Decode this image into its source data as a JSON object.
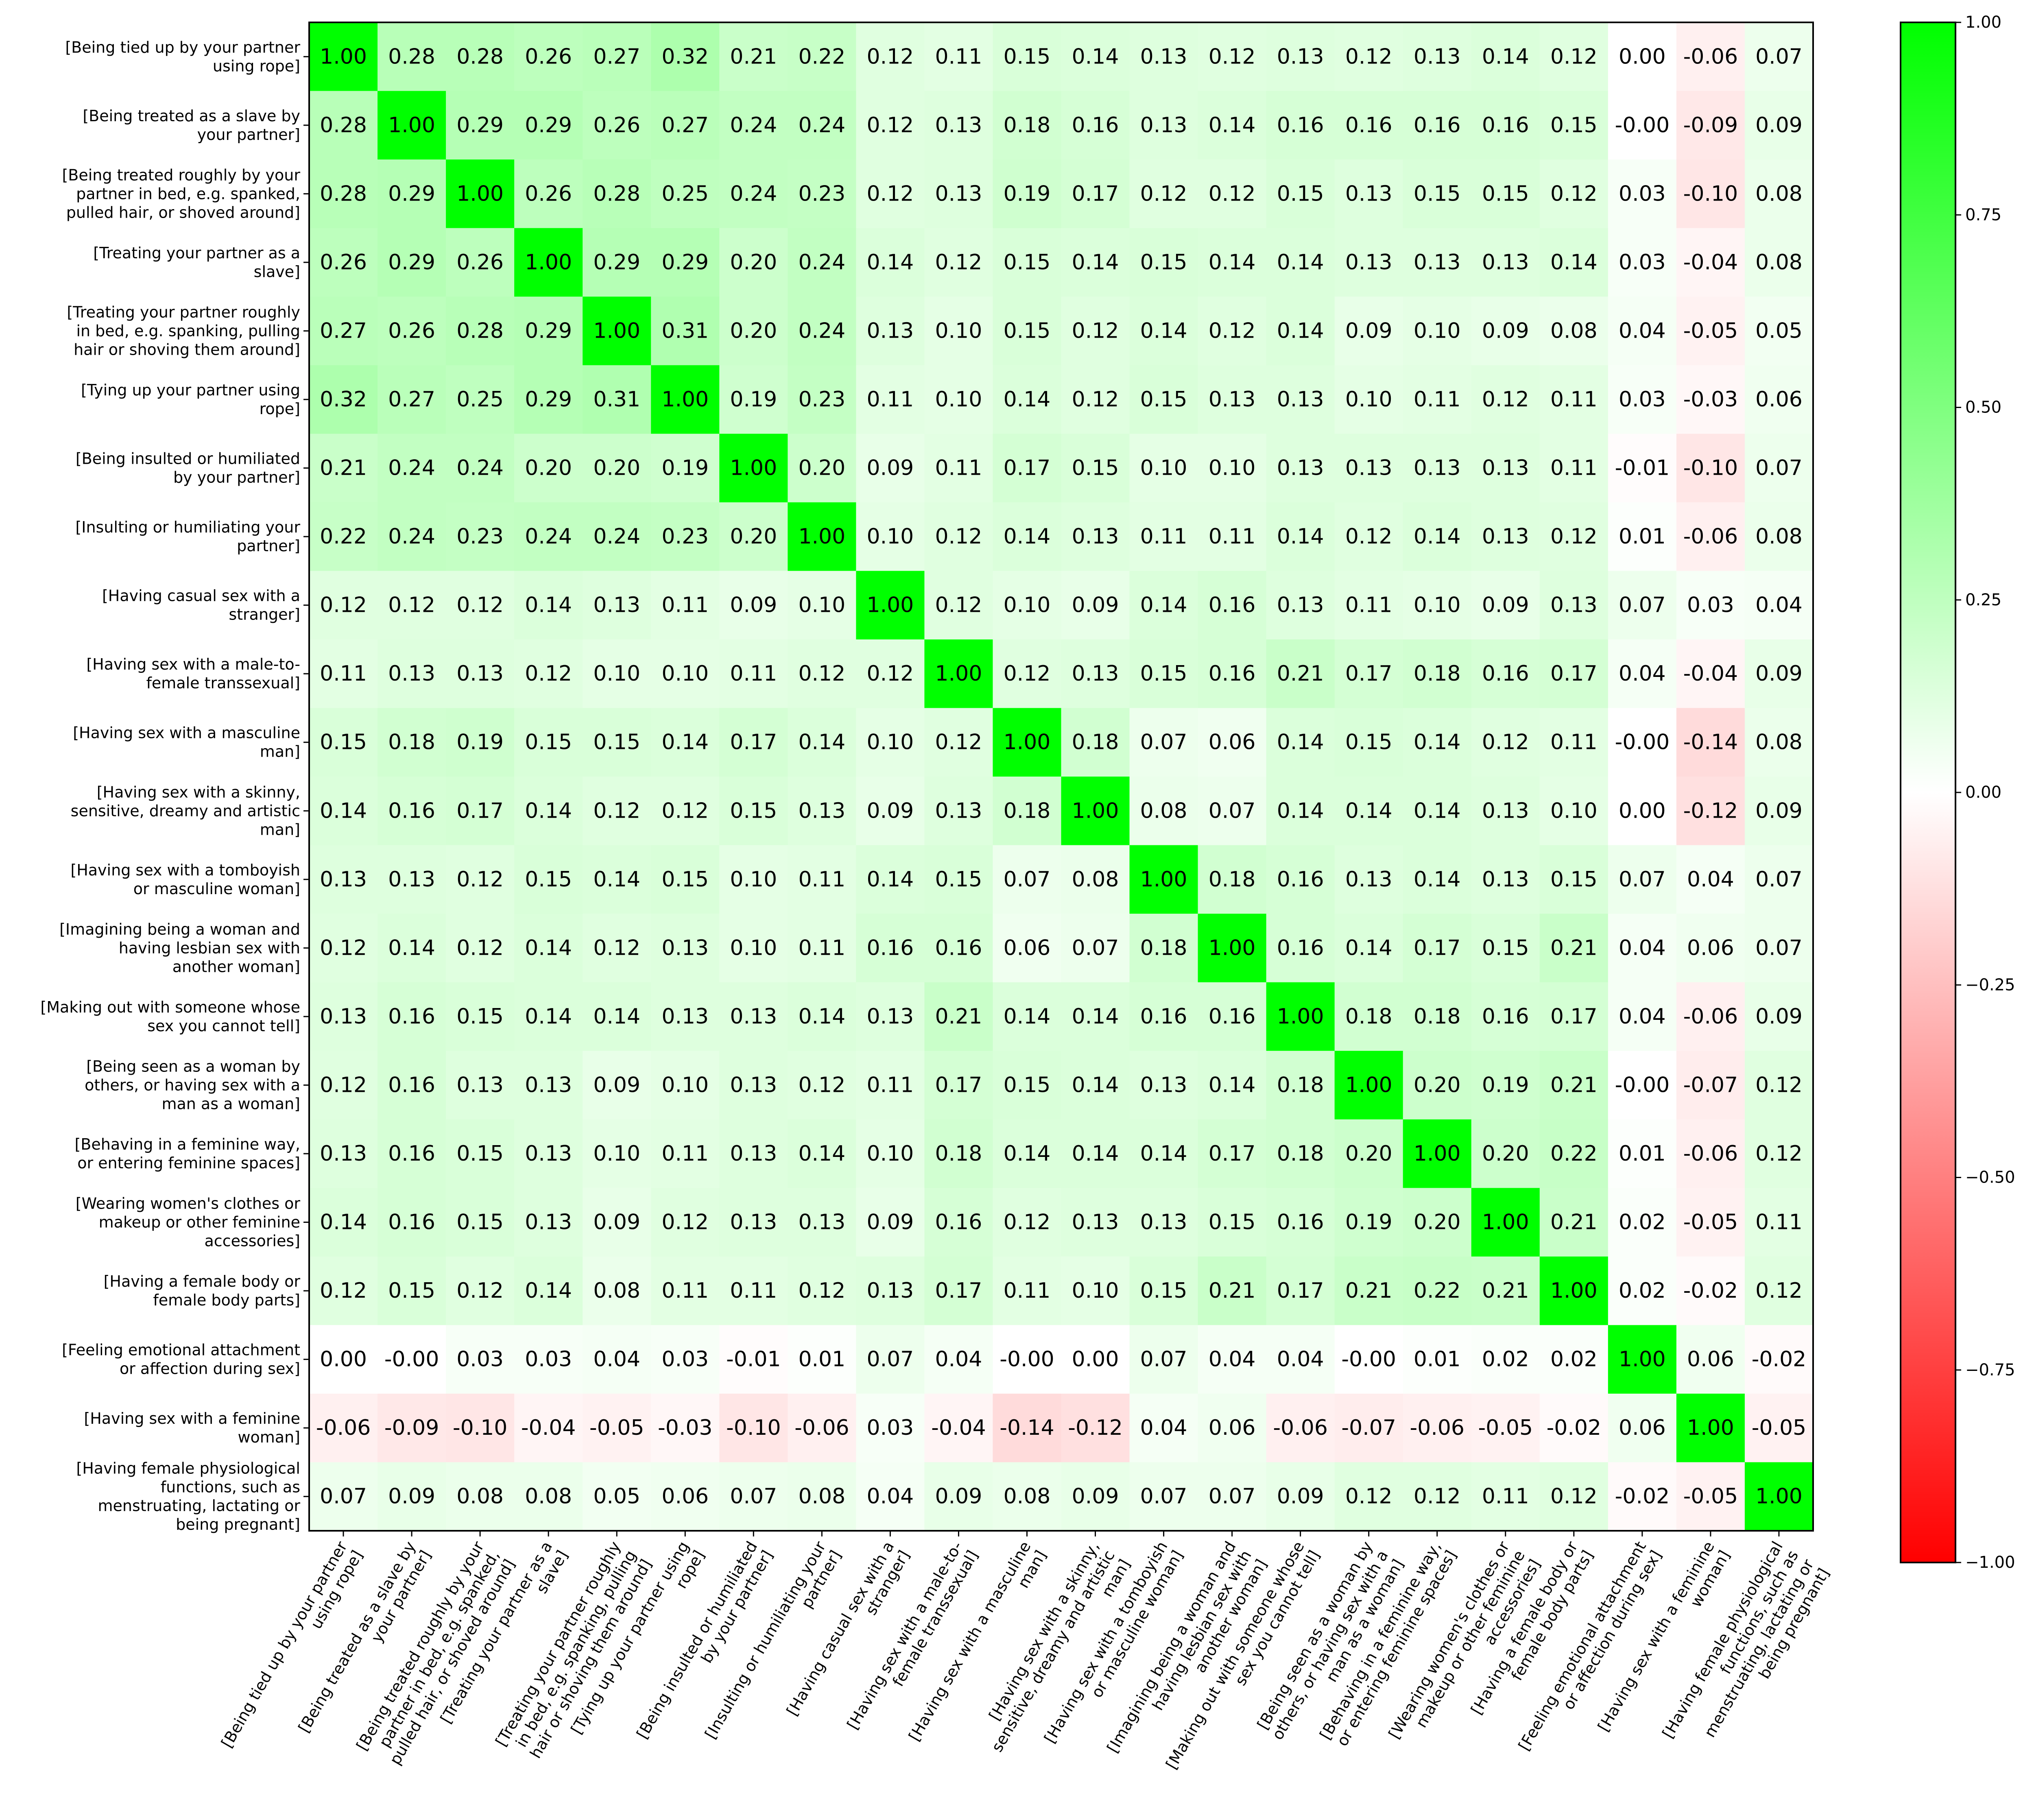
{
  "chart_data": {
    "type": "heatmap",
    "title": "",
    "labels": [
      [
        "[Being tied up by your partner",
        "using rope]"
      ],
      [
        "[Being treated as a slave by",
        "your partner]"
      ],
      [
        "[Being treated roughly by your",
        "partner in bed, e.g. spanked,",
        "pulled hair, or shoved around]"
      ],
      [
        "[Treating your partner as a",
        "slave]"
      ],
      [
        "[Treating your partner roughly",
        "in bed, e.g. spanking, pulling",
        "hair or shoving them around]"
      ],
      [
        "[Tying up your partner using",
        "rope]"
      ],
      [
        "[Being insulted or humiliated",
        "by your partner]"
      ],
      [
        "[Insulting or humiliating your",
        "partner]"
      ],
      [
        "[Having casual sex with a",
        "stranger]"
      ],
      [
        "[Having sex with a male-to-",
        "female transsexual]"
      ],
      [
        "[Having sex with a masculine",
        "man]"
      ],
      [
        "[Having sex with a skinny,",
        "sensitive, dreamy and artistic",
        "man]"
      ],
      [
        "[Having sex with a tomboyish",
        "or masculine woman]"
      ],
      [
        "[Imagining being a woman and",
        "having lesbian sex with",
        "another woman]"
      ],
      [
        "[Making out with someone whose",
        "sex you cannot tell]"
      ],
      [
        "[Being seen as a woman by",
        "others, or having sex with a",
        "man as a woman]"
      ],
      [
        "[Behaving in a feminine way,",
        "or entering feminine spaces]"
      ],
      [
        "[Wearing women's clothes or",
        "makeup or other feminine",
        "accessories]"
      ],
      [
        "[Having a female body or",
        "female body parts]"
      ],
      [
        "[Feeling emotional attachment",
        "or affection during sex]"
      ],
      [
        "[Having sex with a feminine",
        "woman]"
      ],
      [
        "[Having female physiological",
        "functions, such as",
        "menstruating, lactating or",
        "being pregnant]"
      ]
    ],
    "values": [
      [
        "1.00",
        "0.28",
        "0.28",
        "0.26",
        "0.27",
        "0.32",
        "0.21",
        "0.22",
        "0.12",
        "0.11",
        "0.15",
        "0.14",
        "0.13",
        "0.12",
        "0.13",
        "0.12",
        "0.13",
        "0.14",
        "0.12",
        "0.00",
        "-0.06",
        "0.07"
      ],
      [
        "0.28",
        "1.00",
        "0.29",
        "0.29",
        "0.26",
        "0.27",
        "0.24",
        "0.24",
        "0.12",
        "0.13",
        "0.18",
        "0.16",
        "0.13",
        "0.14",
        "0.16",
        "0.16",
        "0.16",
        "0.16",
        "0.15",
        "-0.00",
        "-0.09",
        "0.09"
      ],
      [
        "0.28",
        "0.29",
        "1.00",
        "0.26",
        "0.28",
        "0.25",
        "0.24",
        "0.23",
        "0.12",
        "0.13",
        "0.19",
        "0.17",
        "0.12",
        "0.12",
        "0.15",
        "0.13",
        "0.15",
        "0.15",
        "0.12",
        "0.03",
        "-0.10",
        "0.08"
      ],
      [
        "0.26",
        "0.29",
        "0.26",
        "1.00",
        "0.29",
        "0.29",
        "0.20",
        "0.24",
        "0.14",
        "0.12",
        "0.15",
        "0.14",
        "0.15",
        "0.14",
        "0.14",
        "0.13",
        "0.13",
        "0.13",
        "0.14",
        "0.03",
        "-0.04",
        "0.08"
      ],
      [
        "0.27",
        "0.26",
        "0.28",
        "0.29",
        "1.00",
        "0.31",
        "0.20",
        "0.24",
        "0.13",
        "0.10",
        "0.15",
        "0.12",
        "0.14",
        "0.12",
        "0.14",
        "0.09",
        "0.10",
        "0.09",
        "0.08",
        "0.04",
        "-0.05",
        "0.05"
      ],
      [
        "0.32",
        "0.27",
        "0.25",
        "0.29",
        "0.31",
        "1.00",
        "0.19",
        "0.23",
        "0.11",
        "0.10",
        "0.14",
        "0.12",
        "0.15",
        "0.13",
        "0.13",
        "0.10",
        "0.11",
        "0.12",
        "0.11",
        "0.03",
        "-0.03",
        "0.06"
      ],
      [
        "0.21",
        "0.24",
        "0.24",
        "0.20",
        "0.20",
        "0.19",
        "1.00",
        "0.20",
        "0.09",
        "0.11",
        "0.17",
        "0.15",
        "0.10",
        "0.10",
        "0.13",
        "0.13",
        "0.13",
        "0.13",
        "0.11",
        "-0.01",
        "-0.10",
        "0.07"
      ],
      [
        "0.22",
        "0.24",
        "0.23",
        "0.24",
        "0.24",
        "0.23",
        "0.20",
        "1.00",
        "0.10",
        "0.12",
        "0.14",
        "0.13",
        "0.11",
        "0.11",
        "0.14",
        "0.12",
        "0.14",
        "0.13",
        "0.12",
        "0.01",
        "-0.06",
        "0.08"
      ],
      [
        "0.12",
        "0.12",
        "0.12",
        "0.14",
        "0.13",
        "0.11",
        "0.09",
        "0.10",
        "1.00",
        "0.12",
        "0.10",
        "0.09",
        "0.14",
        "0.16",
        "0.13",
        "0.11",
        "0.10",
        "0.09",
        "0.13",
        "0.07",
        "0.03",
        "0.04"
      ],
      [
        "0.11",
        "0.13",
        "0.13",
        "0.12",
        "0.10",
        "0.10",
        "0.11",
        "0.12",
        "0.12",
        "1.00",
        "0.12",
        "0.13",
        "0.15",
        "0.16",
        "0.21",
        "0.17",
        "0.18",
        "0.16",
        "0.17",
        "0.04",
        "-0.04",
        "0.09"
      ],
      [
        "0.15",
        "0.18",
        "0.19",
        "0.15",
        "0.15",
        "0.14",
        "0.17",
        "0.14",
        "0.10",
        "0.12",
        "1.00",
        "0.18",
        "0.07",
        "0.06",
        "0.14",
        "0.15",
        "0.14",
        "0.12",
        "0.11",
        "-0.00",
        "-0.14",
        "0.08"
      ],
      [
        "0.14",
        "0.16",
        "0.17",
        "0.14",
        "0.12",
        "0.12",
        "0.15",
        "0.13",
        "0.09",
        "0.13",
        "0.18",
        "1.00",
        "0.08",
        "0.07",
        "0.14",
        "0.14",
        "0.14",
        "0.13",
        "0.10",
        "0.00",
        "-0.12",
        "0.09"
      ],
      [
        "0.13",
        "0.13",
        "0.12",
        "0.15",
        "0.14",
        "0.15",
        "0.10",
        "0.11",
        "0.14",
        "0.15",
        "0.07",
        "0.08",
        "1.00",
        "0.18",
        "0.16",
        "0.13",
        "0.14",
        "0.13",
        "0.15",
        "0.07",
        "0.04",
        "0.07"
      ],
      [
        "0.12",
        "0.14",
        "0.12",
        "0.14",
        "0.12",
        "0.13",
        "0.10",
        "0.11",
        "0.16",
        "0.16",
        "0.06",
        "0.07",
        "0.18",
        "1.00",
        "0.16",
        "0.14",
        "0.17",
        "0.15",
        "0.21",
        "0.04",
        "0.06",
        "0.07"
      ],
      [
        "0.13",
        "0.16",
        "0.15",
        "0.14",
        "0.14",
        "0.13",
        "0.13",
        "0.14",
        "0.13",
        "0.21",
        "0.14",
        "0.14",
        "0.16",
        "0.16",
        "1.00",
        "0.18",
        "0.18",
        "0.16",
        "0.17",
        "0.04",
        "-0.06",
        "0.09"
      ],
      [
        "0.12",
        "0.16",
        "0.13",
        "0.13",
        "0.09",
        "0.10",
        "0.13",
        "0.12",
        "0.11",
        "0.17",
        "0.15",
        "0.14",
        "0.13",
        "0.14",
        "0.18",
        "1.00",
        "0.20",
        "0.19",
        "0.21",
        "-0.00",
        "-0.07",
        "0.12"
      ],
      [
        "0.13",
        "0.16",
        "0.15",
        "0.13",
        "0.10",
        "0.11",
        "0.13",
        "0.14",
        "0.10",
        "0.18",
        "0.14",
        "0.14",
        "0.14",
        "0.17",
        "0.18",
        "0.20",
        "1.00",
        "0.20",
        "0.22",
        "0.01",
        "-0.06",
        "0.12"
      ],
      [
        "0.14",
        "0.16",
        "0.15",
        "0.13",
        "0.09",
        "0.12",
        "0.13",
        "0.13",
        "0.09",
        "0.16",
        "0.12",
        "0.13",
        "0.13",
        "0.15",
        "0.16",
        "0.19",
        "0.20",
        "1.00",
        "0.21",
        "0.02",
        "-0.05",
        "0.11"
      ],
      [
        "0.12",
        "0.15",
        "0.12",
        "0.14",
        "0.08",
        "0.11",
        "0.11",
        "0.12",
        "0.13",
        "0.17",
        "0.11",
        "0.10",
        "0.15",
        "0.21",
        "0.17",
        "0.21",
        "0.22",
        "0.21",
        "1.00",
        "0.02",
        "-0.02",
        "0.12"
      ],
      [
        "0.00",
        "-0.00",
        "0.03",
        "0.03",
        "0.04",
        "0.03",
        "-0.01",
        "0.01",
        "0.07",
        "0.04",
        "-0.00",
        "0.00",
        "0.07",
        "0.04",
        "0.04",
        "-0.00",
        "0.01",
        "0.02",
        "0.02",
        "1.00",
        "0.06",
        "-0.02"
      ],
      [
        "-0.06",
        "-0.09",
        "-0.10",
        "-0.04",
        "-0.05",
        "-0.03",
        "-0.10",
        "-0.06",
        "0.03",
        "-0.04",
        "-0.14",
        "-0.12",
        "0.04",
        "0.06",
        "-0.06",
        "-0.07",
        "-0.06",
        "-0.05",
        "-0.02",
        "0.06",
        "1.00",
        "-0.05"
      ],
      [
        "0.07",
        "0.09",
        "0.08",
        "0.08",
        "0.05",
        "0.06",
        "0.07",
        "0.08",
        "0.04",
        "0.09",
        "0.08",
        "0.09",
        "0.07",
        "0.07",
        "0.09",
        "0.12",
        "0.12",
        "0.11",
        "0.12",
        "-0.02",
        "-0.05",
        "1.00"
      ]
    ],
    "vmin": -1.0,
    "vmax": 1.0,
    "colormap": {
      "low": "#ff0000",
      "mid": "#ffffff",
      "high": "#00ff00"
    },
    "colorbar_ticks": [
      "1.00",
      "0.75",
      "0.50",
      "0.25",
      "0.00",
      "−0.25",
      "−0.50",
      "−0.75",
      "−1.00"
    ],
    "colorbar_tick_values": [
      1.0,
      0.75,
      0.5,
      0.25,
      0.0,
      -0.25,
      -0.5,
      -0.75,
      -1.0
    ]
  }
}
